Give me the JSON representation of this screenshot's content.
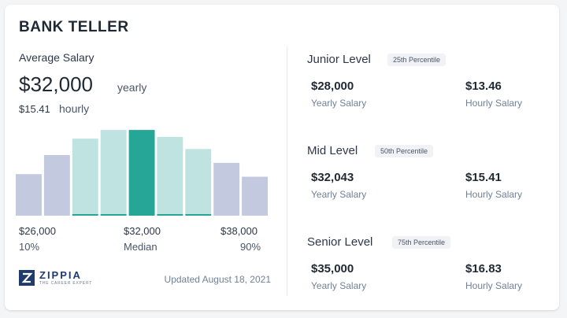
{
  "title": "BANK TELLER",
  "average": {
    "label": "Average Salary",
    "yearly_value": "$32,000",
    "yearly_text": "yearly",
    "hourly_value": "$15.41",
    "hourly_text": "hourly"
  },
  "chart_data": {
    "type": "bar",
    "categories": [
      "1",
      "2",
      "3",
      "4",
      "5",
      "6",
      "7",
      "8",
      "9"
    ],
    "values": [
      48,
      70,
      89,
      99,
      99,
      91,
      77,
      61,
      45
    ],
    "highlight_index": 4,
    "colors": {
      "outer": "#c3c9df",
      "inner": "#bfe3e0",
      "median": "#26a697",
      "baseline": "#26a697"
    },
    "x_labels": [
      {
        "value": "$26,000",
        "sub": "10%"
      },
      {
        "value": "$32,000",
        "sub": "Median"
      },
      {
        "value": "$38,000",
        "sub": "90%"
      }
    ]
  },
  "brand": {
    "name": "ZIPPIA",
    "tagline": "THE CAREER EXPERT",
    "color": "#1f3b6e"
  },
  "updated": "Updated August 18, 2021",
  "levels": [
    {
      "name": "Junior Level",
      "percentile": "25th Percentile",
      "yearly": "$28,000",
      "yearly_label": "Yearly Salary",
      "hourly": "$13.46",
      "hourly_label": "Hourly Salary"
    },
    {
      "name": "Mid Level",
      "percentile": "50th Percentile",
      "yearly": "$32,043",
      "yearly_label": "Yearly Salary",
      "hourly": "$15.41",
      "hourly_label": "Hourly Salary"
    },
    {
      "name": "Senior Level",
      "percentile": "75th Percentile",
      "yearly": "$35,000",
      "yearly_label": "Yearly Salary",
      "hourly": "$16.83",
      "hourly_label": "Hourly Salary"
    }
  ]
}
